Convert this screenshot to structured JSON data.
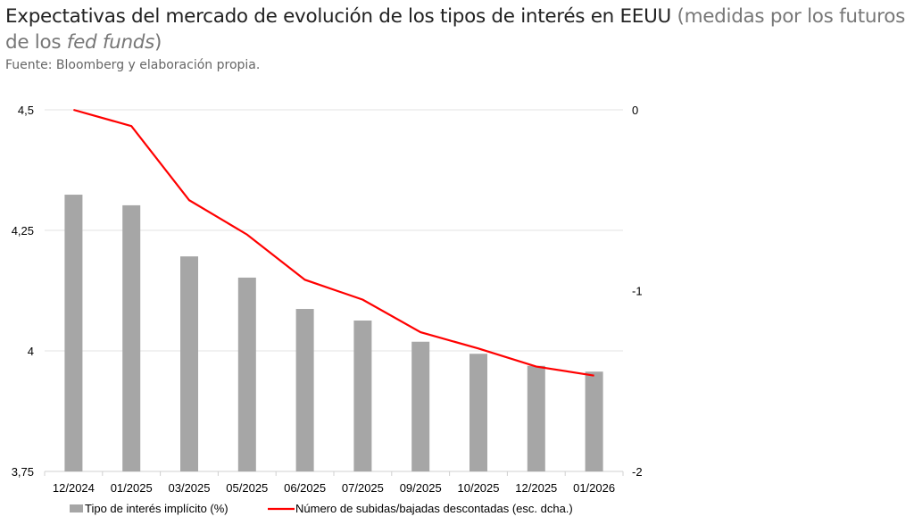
{
  "title": {
    "main": "Expectativas del mercado de evolución de los tipos de interés en EEUU",
    "sub_a": "(medidas por los futuros de los",
    "sub_italic": "fed funds",
    "sub_b": ")"
  },
  "source": "Fuente: Bloomberg y elaboración propia.",
  "chart_data": {
    "type": "bar",
    "categories": [
      "12/2024",
      "01/2025",
      "03/2025",
      "05/2025",
      "06/2025",
      "07/2025",
      "09/2025",
      "10/2025",
      "12/2025",
      "01/2026"
    ],
    "series": [
      {
        "name": "Tipo de interés implícito (%)",
        "type": "bar",
        "axis": "left",
        "color": "#a6a6a6",
        "values": [
          4.324,
          4.302,
          4.196,
          4.152,
          4.087,
          4.063,
          4.019,
          3.994,
          3.969,
          3.957
        ]
      },
      {
        "name": "Número de subidas/bajadas descontadas (esc. dcha.)",
        "type": "line",
        "axis": "right",
        "color": "#ff0000",
        "values": [
          0,
          -0.09,
          -0.5,
          -0.69,
          -0.94,
          -1.05,
          -1.23,
          -1.32,
          -1.42,
          -1.47
        ]
      }
    ],
    "ylim": [
      3.75,
      4.5
    ],
    "yticks": [
      "4,5",
      "4,25",
      "4",
      "3,75"
    ],
    "ytick_values": [
      4.5,
      4.25,
      4,
      3.75
    ],
    "y2lim": [
      -2,
      0
    ],
    "y2ticks": [
      "0",
      "-1",
      "-2"
    ],
    "y2tick_values": [
      0,
      -1,
      -2
    ],
    "grid": true,
    "legend": "bottom"
  }
}
